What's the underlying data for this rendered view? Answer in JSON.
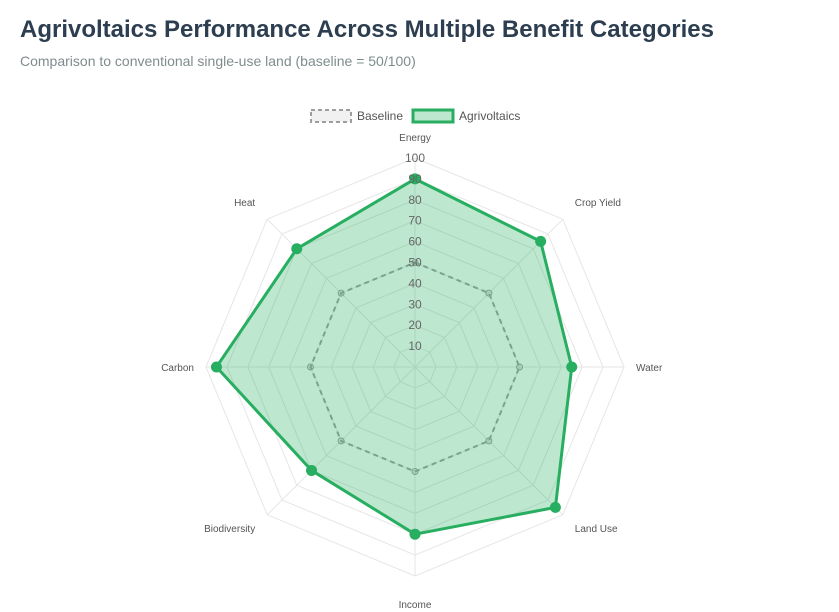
{
  "page": {
    "title": "Agrivoltaics Performance Across Multiple Benefit Categories",
    "subtitle": "Comparison to conventional single-use land (baseline = 50/100)"
  },
  "colors": {
    "agrivoltaics_line": "#27ae60",
    "agrivoltaics_fill": "rgba(39,174,96,0.3)",
    "baseline_line": "#9e9e9e",
    "grid": "#e6e6e6"
  },
  "chart_data": {
    "type": "radar",
    "categories": [
      "Energy",
      "Crop Yield",
      "Water",
      "Land Use",
      "Income",
      "Biodiversity",
      "Carbon",
      "Heat"
    ],
    "range": [
      0,
      100
    ],
    "ticks": [
      10,
      20,
      30,
      40,
      50,
      60,
      70,
      80,
      90,
      100
    ],
    "legend_position": "top-center",
    "series": [
      {
        "name": "Baseline",
        "values": [
          50,
          50,
          50,
          50,
          50,
          50,
          50,
          50
        ],
        "style": "dashed"
      },
      {
        "name": "Agrivoltaics",
        "values": [
          90,
          85,
          75,
          95,
          80,
          70,
          95,
          80
        ],
        "style": "solid"
      }
    ]
  }
}
